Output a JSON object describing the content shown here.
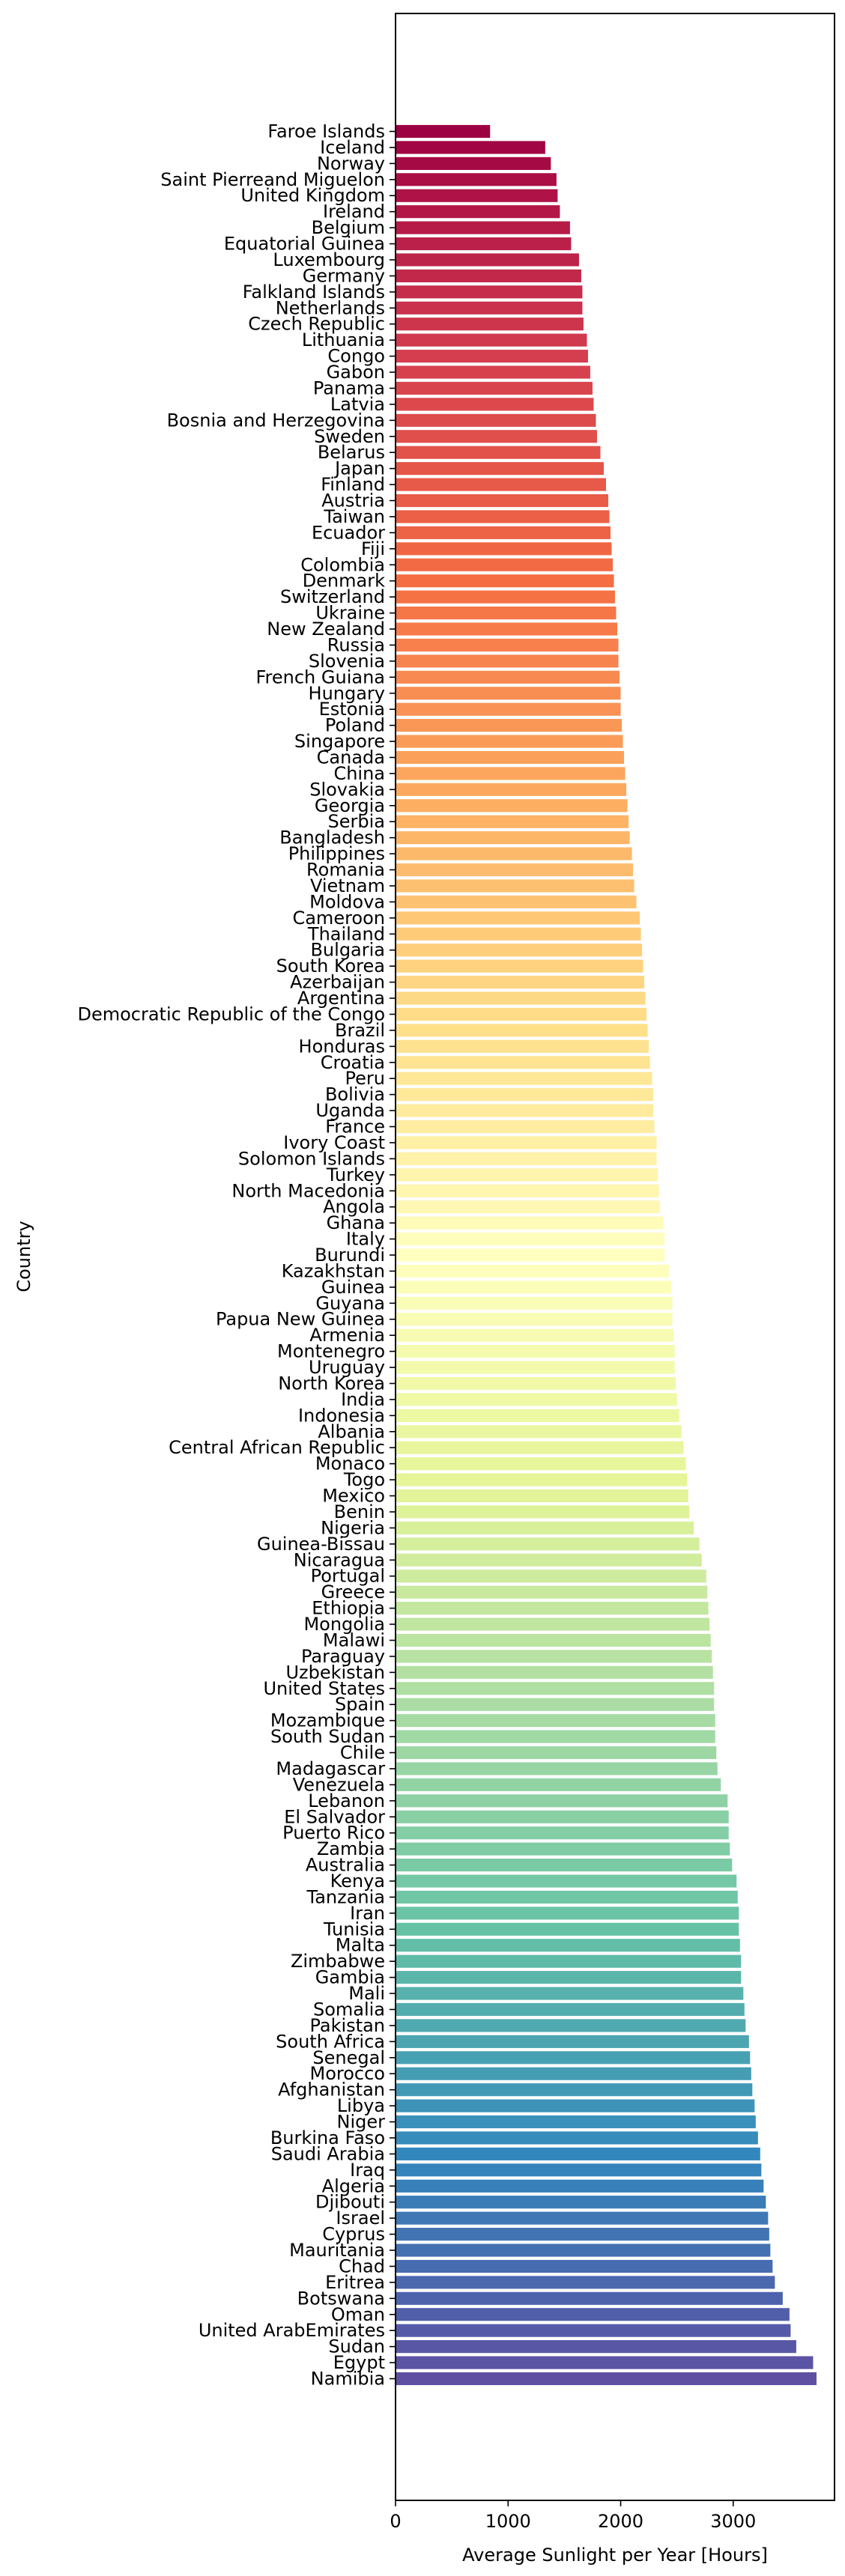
{
  "chart_data": {
    "type": "bar",
    "orientation": "horizontal",
    "xlabel": "Average Sunlight per Year [Hours]",
    "ylabel": "Country",
    "xlim": [
      0,
      3900
    ],
    "x_ticks": [
      0,
      1000,
      2000,
      3000
    ],
    "grid": false,
    "colormap": "Spectral",
    "categories": [
      "Faroe Islands",
      "Iceland",
      "Norway",
      "Saint Pierreand Miguelon",
      "United Kingdom",
      "Ireland",
      "Belgium",
      "Equatorial Guinea",
      "Luxembourg",
      "Germany",
      "Falkland Islands",
      "Netherlands",
      "Czech Republic",
      "Lithuania",
      "Congo",
      "Gabon",
      "Panama",
      "Latvia",
      "Bosnia and Herzegovina",
      "Sweden",
      "Belarus",
      "Japan",
      "Finland",
      "Austria",
      "Taiwan",
      "Ecuador",
      "Fiji",
      "Colombia",
      "Denmark",
      "Switzerland",
      "Ukraine",
      "New Zealand",
      "Russia",
      "Slovenia",
      "French Guiana",
      "Hungary",
      "Estonia",
      "Poland",
      "Singapore",
      "Canada",
      "China",
      "Slovakia",
      "Georgia",
      "Serbia",
      "Bangladesh",
      "Philippines",
      "Romania",
      "Vietnam",
      "Moldova",
      "Cameroon",
      "Thailand",
      "Bulgaria",
      "South Korea",
      "Azerbaijan",
      "Argentina",
      "Democratic Republic of the Congo",
      "Brazil",
      "Honduras",
      "Croatia",
      "Peru",
      "Bolivia",
      "Uganda",
      "France",
      "Ivory Coast",
      "Solomon Islands",
      "Turkey",
      "North Macedonia",
      "Angola",
      "Ghana",
      "Italy",
      "Burundi",
      "Kazakhstan",
      "Guinea",
      "Guyana",
      "Papua New Guinea",
      "Armenia",
      "Montenegro",
      "Uruguay",
      "North Korea",
      "India",
      "Indonesia",
      "Albania",
      "Central African Republic",
      "Monaco",
      "Togo",
      "Mexico",
      "Benin",
      "Nigeria",
      "Guinea-Bissau",
      "Nicaragua",
      "Portugal",
      "Greece",
      "Ethiopia",
      "Mongolia",
      "Malawi",
      "Paraguay",
      "Uzbekistan",
      "United States",
      "Spain",
      "Mozambique",
      "South Sudan",
      "Chile",
      "Madagascar",
      "Venezuela",
      "Lebanon",
      "El Salvador",
      "Puerto Rico",
      "Zambia",
      "Australia",
      "Kenya",
      "Tanzania",
      "Iran",
      "Tunisia",
      "Malta",
      "Zimbabwe",
      "Gambia",
      "Mali",
      "Somalia",
      "Pakistan",
      "South Africa",
      "Senegal",
      "Morocco",
      "Afghanistan",
      "Libya",
      "Niger",
      "Burkina Faso",
      "Saudi Arabia",
      "Iraq",
      "Algeria",
      "Djibouti",
      "Israel",
      "Cyprus",
      "Mauritania",
      "Chad",
      "Eritrea",
      "Botswana",
      "Oman",
      "United ArabEmirates",
      "Sudan",
      "Egypt",
      "Namibia"
    ],
    "values": [
      840,
      1330,
      1380,
      1430,
      1440,
      1460,
      1550,
      1560,
      1630,
      1650,
      1660,
      1660,
      1670,
      1700,
      1710,
      1730,
      1750,
      1760,
      1780,
      1790,
      1820,
      1850,
      1870,
      1890,
      1900,
      1910,
      1920,
      1930,
      1940,
      1950,
      1960,
      1970,
      1980,
      1980,
      1990,
      2000,
      2000,
      2010,
      2020,
      2030,
      2040,
      2050,
      2060,
      2070,
      2080,
      2100,
      2110,
      2120,
      2140,
      2170,
      2180,
      2190,
      2200,
      2210,
      2220,
      2230,
      2240,
      2250,
      2260,
      2280,
      2290,
      2290,
      2300,
      2320,
      2320,
      2330,
      2340,
      2350,
      2380,
      2390,
      2390,
      2430,
      2450,
      2460,
      2460,
      2470,
      2480,
      2480,
      2490,
      2500,
      2520,
      2540,
      2560,
      2580,
      2590,
      2600,
      2610,
      2650,
      2700,
      2720,
      2760,
      2770,
      2780,
      2790,
      2800,
      2810,
      2820,
      2830,
      2830,
      2840,
      2840,
      2850,
      2860,
      2890,
      2950,
      2960,
      2960,
      2970,
      2990,
      3030,
      3040,
      3050,
      3050,
      3060,
      3070,
      3070,
      3090,
      3100,
      3110,
      3140,
      3150,
      3160,
      3170,
      3190,
      3200,
      3220,
      3240,
      3250,
      3270,
      3290,
      3310,
      3320,
      3330,
      3350,
      3370,
      3440,
      3500,
      3510,
      3560,
      3710,
      3740
    ]
  }
}
